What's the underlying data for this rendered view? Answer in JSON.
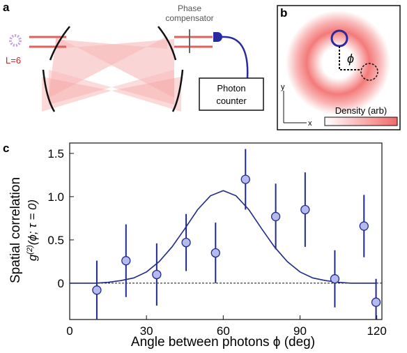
{
  "panel_a": {
    "label": "a",
    "phase": [
      "Phase",
      "compensator"
    ],
    "mode": "L=6",
    "counter": [
      "Photon",
      "counter"
    ]
  },
  "panel_b": {
    "label": "b",
    "phi": "ϕ",
    "y_axis": "y",
    "x_axis": "x",
    "density": "Density (arb)"
  },
  "chart_data": {
    "type": "scatter",
    "panel": "c",
    "x_label": "Angle between photons ϕ (deg)",
    "y_label": "Spatial correlation",
    "y_label_math": {
      "base": "g",
      "sup": "(2)",
      "args": "(ϕ; τ = 0)"
    },
    "x": [
      10.6,
      22,
      34,
      45.5,
      57,
      68.7,
      80.5,
      92,
      103.6,
      115,
      119.7
    ],
    "values": [
      -0.08,
      0.26,
      0.1,
      0.47,
      0.35,
      1.2,
      0.77,
      0.85,
      0.05,
      0.66,
      -0.22
    ],
    "errors": [
      0.34,
      0.42,
      0.36,
      0.33,
      0.35,
      0.35,
      0.38,
      0.43,
      0.33,
      0.36,
      0.27
    ],
    "color": "#1f2a8c",
    "marker_fill": "#b4b9ee",
    "fit": {
      "x": [
        0,
        5,
        10,
        15,
        20,
        25,
        30,
        35,
        40,
        45,
        50,
        55,
        60,
        65,
        70,
        75,
        80,
        85,
        90,
        95,
        100,
        105,
        110,
        115,
        120
      ],
      "values": [
        0,
        0,
        0,
        0.01,
        0.03,
        0.06,
        0.13,
        0.25,
        0.42,
        0.63,
        0.85,
        1.01,
        1.07,
        1.01,
        0.85,
        0.63,
        0.42,
        0.25,
        0.13,
        0.06,
        0.03,
        0.01,
        0,
        0,
        0
      ]
    },
    "xlim": [
      0,
      122
    ],
    "ylim": [
      -0.42,
      1.62
    ],
    "xticks": [
      0,
      30,
      60,
      90,
      120
    ],
    "yticks": [
      0,
      0.5,
      {
        "value": 1,
        "label": "1.0"
      },
      1.5
    ]
  }
}
